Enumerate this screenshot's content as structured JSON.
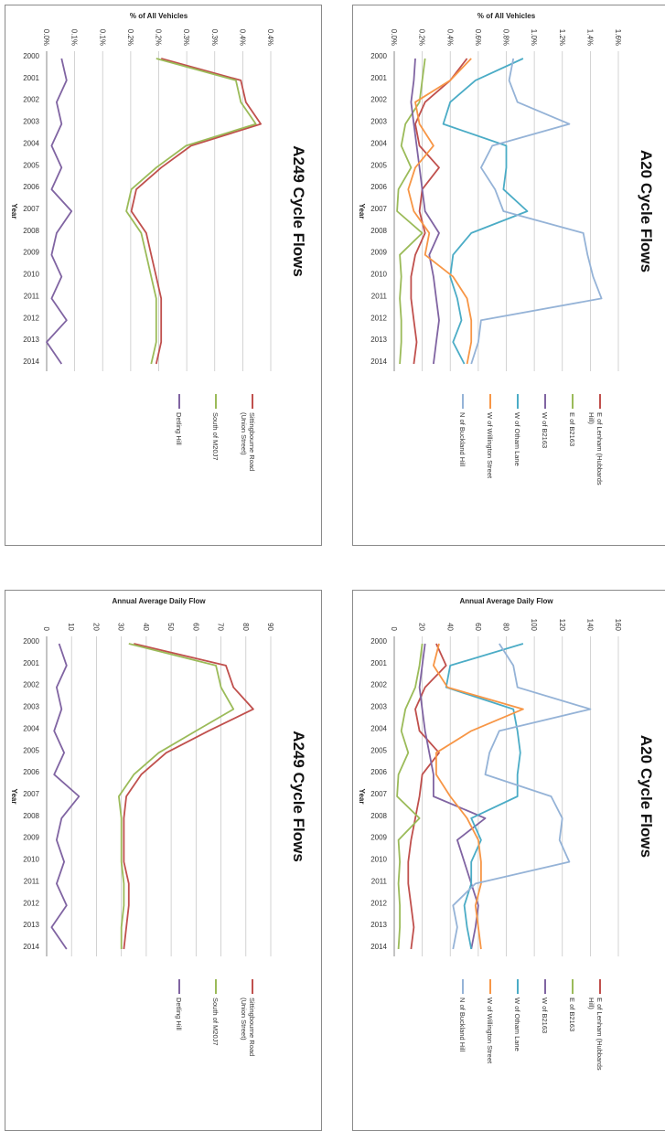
{
  "chart_data": [
    {
      "type": "line",
      "title": "A249 Cycle Flows",
      "xlabel": "Year",
      "ylabel": "Annual Average Daily Flow",
      "x": [
        "2000",
        "2001",
        "2002",
        "2003",
        "2004",
        "2005",
        "2006",
        "2007",
        "2008",
        "2009",
        "2010",
        "2011",
        "2012",
        "2013",
        "2014"
      ],
      "yticks": [
        "0",
        "10",
        "20",
        "30",
        "40",
        "50",
        "60",
        "70",
        "80",
        "90"
      ],
      "ylim": [
        0,
        90
      ],
      "grid": true,
      "legend": "right",
      "series": [
        {
          "name": "Sittingbourne Road (Union Street)",
          "color": "#c0504d",
          "values": [
            35,
            72,
            75,
            83,
            65,
            48,
            38,
            32,
            31,
            31,
            31,
            33,
            33,
            32,
            31
          ]
        },
        {
          "name": "South of M20J7",
          "color": "#9bbb59",
          "values": [
            33,
            68,
            70,
            75,
            60,
            45,
            35,
            29,
            30,
            30,
            30,
            31,
            31,
            30,
            30
          ]
        },
        {
          "name": "Detling Hill",
          "color": "#8064a2",
          "values": [
            5,
            8,
            4,
            6,
            3,
            7,
            3,
            13,
            6,
            4,
            7,
            4,
            8,
            2,
            8
          ]
        }
      ]
    },
    {
      "type": "line",
      "title": "A249 Cycle Flows",
      "xlabel": "Year",
      "ylabel": "% of All Vehicles",
      "x": [
        "2000",
        "2001",
        "2002",
        "2003",
        "2004",
        "2005",
        "2006",
        "2007",
        "2008",
        "2009",
        "2010",
        "2011",
        "2012",
        "2013",
        "2014"
      ],
      "yticks": [
        "0.0%",
        "0.1%",
        "0.1%",
        "0.2%",
        "0.2%",
        "0.3%",
        "0.3%",
        "0.4%",
        "0.4%"
      ],
      "ylim": [
        0,
        0.45
      ],
      "grid": true,
      "legend": "right",
      "series": [
        {
          "name": "Sittingbourne Road (Union Street)",
          "color": "#c0504d",
          "values": [
            0.23,
            0.39,
            0.4,
            0.43,
            0.29,
            0.23,
            0.18,
            0.17,
            0.2,
            0.21,
            0.22,
            0.23,
            0.23,
            0.23,
            0.22
          ]
        },
        {
          "name": "South of M20J7",
          "color": "#9bbb59",
          "values": [
            0.22,
            0.38,
            0.39,
            0.42,
            0.28,
            0.22,
            0.17,
            0.16,
            0.19,
            0.2,
            0.21,
            0.22,
            0.22,
            0.22,
            0.21
          ]
        },
        {
          "name": "Detling Hill",
          "color": "#8064a2",
          "values": [
            0.03,
            0.04,
            0.02,
            0.03,
            0.01,
            0.03,
            0.01,
            0.05,
            0.02,
            0.01,
            0.03,
            0.01,
            0.04,
            0.0,
            0.03
          ]
        }
      ]
    },
    {
      "type": "line",
      "title": "A20 Cycle Flows",
      "xlabel": "Year",
      "ylabel": "Annual Average Daily Flow",
      "x": [
        "2000",
        "2001",
        "2002",
        "2003",
        "2004",
        "2005",
        "2006",
        "2007",
        "2008",
        "2009",
        "2010",
        "2011",
        "2012",
        "2013",
        "2014"
      ],
      "yticks": [
        "0",
        "20",
        "40",
        "60",
        "80",
        "100",
        "120",
        "140",
        "160"
      ],
      "ylim": [
        0,
        160
      ],
      "grid": true,
      "legend": "right",
      "series": [
        {
          "name": "E of Lenham (Hubbards Hill)",
          "color": "#c0504d",
          "values": [
            30,
            37,
            22,
            15,
            18,
            32,
            20,
            18,
            15,
            12,
            10,
            10,
            12,
            14,
            12
          ]
        },
        {
          "name": "E of B2163",
          "color": "#9bbb59",
          "values": [
            20,
            18,
            15,
            8,
            5,
            10,
            3,
            2,
            18,
            3,
            4,
            3,
            4,
            4,
            3
          ]
        },
        {
          "name": "W of B2163",
          "color": "#8064a2",
          "values": [
            22,
            20,
            18,
            20,
            22,
            25,
            28,
            28,
            65,
            45,
            50,
            55,
            60,
            58,
            55
          ]
        },
        {
          "name": "W of Otham Lane",
          "color": "#4bacc6",
          "values": [
            92,
            40,
            37,
            85,
            88,
            90,
            88,
            88,
            55,
            62,
            55,
            55,
            50,
            52,
            55
          ]
        },
        {
          "name": "W of Willington Street",
          "color": "#f79646",
          "values": [
            32,
            28,
            38,
            92,
            55,
            30,
            30,
            40,
            52,
            60,
            62,
            62,
            58,
            60,
            62
          ]
        },
        {
          "name": "N of Buckland Hill",
          "color": "#95b3d7",
          "values": [
            75,
            85,
            88,
            140,
            75,
            68,
            65,
            112,
            120,
            118,
            125,
            58,
            42,
            45,
            42
          ]
        }
      ]
    },
    {
      "type": "line",
      "title": "A20 Cycle Flows",
      "xlabel": "Year",
      "ylabel": "% of All Vehicles",
      "x": [
        "2000",
        "2001",
        "2002",
        "2003",
        "2004",
        "2005",
        "2006",
        "2007",
        "2008",
        "2009",
        "2010",
        "2011",
        "2012",
        "2013",
        "2014"
      ],
      "yticks": [
        "0.0%",
        "0.2%",
        "0.4%",
        "0.6%",
        "0.8%",
        "1.0%",
        "1.2%",
        "1.4%",
        "1.6%"
      ],
      "ylim": [
        0,
        1.6
      ],
      "grid": true,
      "legend": "right",
      "series": [
        {
          "name": "E of Lenham (Hubbards Hill)",
          "color": "#c0504d",
          "values": [
            0.52,
            0.4,
            0.22,
            0.15,
            0.18,
            0.32,
            0.2,
            0.18,
            0.22,
            0.15,
            0.12,
            0.12,
            0.14,
            0.16,
            0.14
          ]
        },
        {
          "name": "E of B2163",
          "color": "#9bbb59",
          "values": [
            0.22,
            0.2,
            0.18,
            0.08,
            0.05,
            0.12,
            0.03,
            0.02,
            0.2,
            0.04,
            0.05,
            0.04,
            0.05,
            0.05,
            0.04
          ]
        },
        {
          "name": "W of B2163",
          "color": "#8064a2",
          "values": [
            0.15,
            0.14,
            0.12,
            0.14,
            0.16,
            0.18,
            0.2,
            0.22,
            0.32,
            0.25,
            0.28,
            0.3,
            0.32,
            0.3,
            0.28
          ]
        },
        {
          "name": "W of Otham Lane",
          "color": "#4bacc6",
          "values": [
            0.92,
            0.58,
            0.4,
            0.35,
            0.8,
            0.8,
            0.78,
            0.95,
            0.55,
            0.42,
            0.4,
            0.45,
            0.48,
            0.42,
            0.5
          ]
        },
        {
          "name": "W of Willington Street",
          "color": "#f79646",
          "values": [
            0.55,
            0.4,
            0.15,
            0.18,
            0.28,
            0.15,
            0.1,
            0.14,
            0.25,
            0.22,
            0.42,
            0.52,
            0.55,
            0.55,
            0.52
          ]
        },
        {
          "name": "N of Buckland Hill",
          "color": "#95b3d7",
          "values": [
            0.85,
            0.82,
            0.88,
            1.25,
            0.7,
            0.62,
            0.72,
            0.78,
            1.35,
            1.38,
            1.42,
            1.48,
            0.62,
            0.6,
            0.55
          ]
        }
      ]
    }
  ]
}
